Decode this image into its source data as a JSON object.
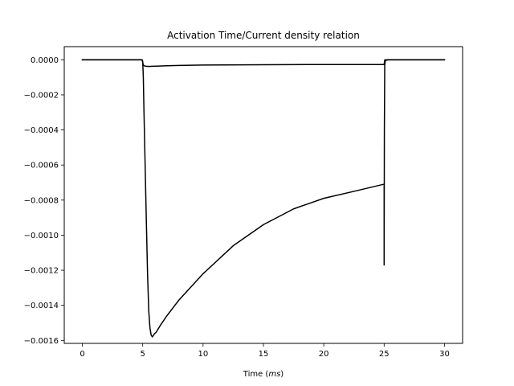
{
  "chart_data": {
    "type": "line",
    "title": "Activation Time/Current density relation",
    "xlabel": "Time (ms)",
    "xlabel_prefix": "Time (",
    "xlabel_unit": "ms",
    "xlabel_suffix": ")",
    "ylabel": "",
    "xlim": [
      -1.5,
      31.5
    ],
    "ylim": [
      -0.001617,
      7.5e-05
    ],
    "xticks": [
      0,
      5,
      10,
      15,
      20,
      25,
      30
    ],
    "xtick_labels": [
      "0",
      "5",
      "10",
      "15",
      "20",
      "25",
      "30"
    ],
    "yticks": [
      0.0,
      -0.0002,
      -0.0004,
      -0.0006,
      -0.0008,
      -0.001,
      -0.0012,
      -0.0014,
      -0.0016
    ],
    "ytick_labels": [
      "0.0000",
      "−0.0002",
      "−0.0004",
      "−0.0006",
      "−0.0008",
      "−0.0010",
      "−0.0012",
      "−0.0014",
      "−0.0016"
    ],
    "grid": false,
    "legend": false,
    "line_color": "#000000",
    "series": [
      {
        "x": [
          0,
          4.95,
          5.05,
          5.15,
          5.3,
          5.5,
          5.8,
          6.2,
          7,
          8,
          10,
          15,
          20,
          24.95,
          25.0,
          25.05,
          25.2,
          26,
          30
        ],
        "y": [
          0,
          0,
          -3e-05,
          -3.5e-05,
          -3.7e-05,
          -3.8e-05,
          -3.7e-05,
          -3.6e-05,
          -3.4e-05,
          -3.2e-05,
          -3e-05,
          -2.8e-05,
          -2.7e-05,
          -2.7e-05,
          -2.7e-05,
          -5e-07,
          0,
          0,
          0
        ]
      },
      {
        "x": [
          0,
          4.95,
          5.0,
          5.05,
          5.1,
          5.2,
          5.3,
          5.4,
          5.5,
          5.6,
          5.7,
          5.8,
          5.9,
          6.0,
          6.1,
          6.5,
          7,
          8,
          10,
          12.5,
          15,
          17.5,
          20,
          22.5,
          24.95,
          25.0,
          25.0,
          25.02,
          25.05,
          25.1,
          25.3,
          26,
          30
        ],
        "y": [
          0,
          0,
          -1e-05,
          -0.0001,
          -0.00028,
          -0.0006,
          -0.00092,
          -0.00122,
          -0.00143,
          -0.00153,
          -0.00157,
          -0.00158,
          -0.00157,
          -0.00156,
          -0.001555,
          -0.00151,
          -0.00146,
          -0.00137,
          -0.00122,
          -0.00106,
          -0.00094,
          -0.00085,
          -0.00079,
          -0.00075,
          -0.00071,
          -0.00071,
          -0.00117,
          -0.0004,
          -3e-05,
          -5e-06,
          0,
          0,
          0
        ]
      }
    ]
  }
}
